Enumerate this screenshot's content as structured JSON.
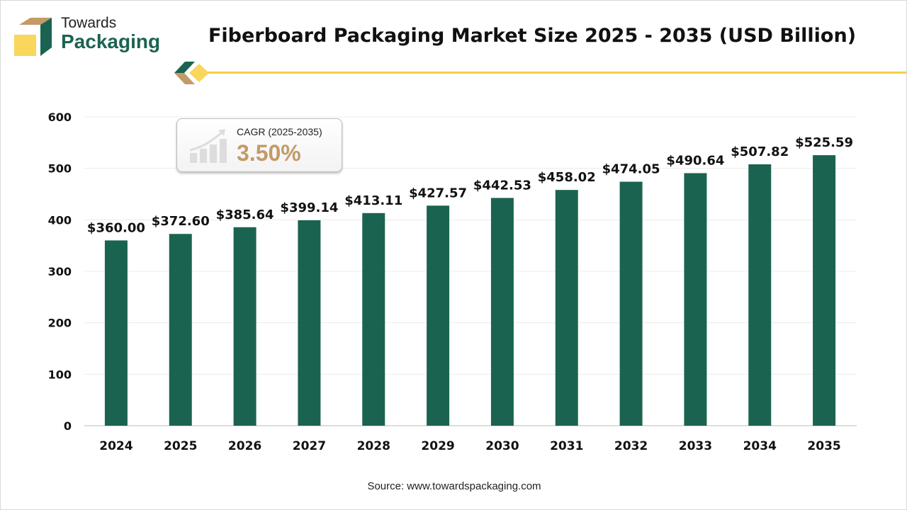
{
  "brand": {
    "line1": "Towards",
    "line2": "Packaging"
  },
  "colors": {
    "bar": "#1b6351",
    "accent": "#f5cf4d",
    "logo_tan": "#c49a68",
    "cagr": "#c49a68"
  },
  "cagr": {
    "label": "CAGR (2025-2035)",
    "value": "3.50%",
    "icon": "growth-chart-icon"
  },
  "source": "Source: www.towardspackaging.com",
  "chart_data": {
    "type": "bar",
    "title": "Fiberboard Packaging Market Size 2025 - 2035 (USD Billion)",
    "xlabel": "",
    "ylabel": "",
    "ylim": [
      0,
      600
    ],
    "yticks": [
      0,
      100,
      200,
      300,
      400,
      500,
      600
    ],
    "grid": true,
    "categories": [
      "2024",
      "2025",
      "2026",
      "2027",
      "2028",
      "2029",
      "2030",
      "2031",
      "2032",
      "2033",
      "2034",
      "2035"
    ],
    "values": [
      360.0,
      372.6,
      385.64,
      399.14,
      413.11,
      427.57,
      442.53,
      458.02,
      474.05,
      490.64,
      507.82,
      525.59
    ],
    "data_labels": [
      "$360.00",
      "$372.60",
      "$385.64",
      "$399.14",
      "$413.11",
      "$427.57",
      "$442.53",
      "$458.02",
      "$474.05",
      "$490.64",
      "$507.82",
      "$525.59"
    ]
  }
}
